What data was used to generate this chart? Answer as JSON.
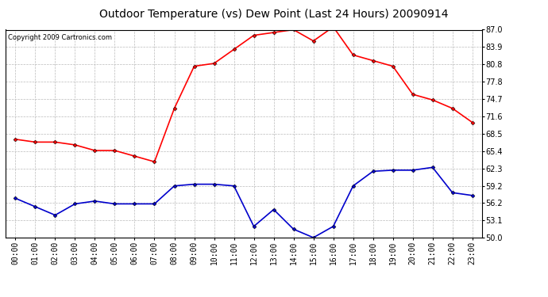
{
  "title": "Outdoor Temperature (vs) Dew Point (Last 24 Hours) 20090914",
  "copyright_text": "Copyright 2009 Cartronics.com",
  "hours": [
    "00:00",
    "01:00",
    "02:00",
    "03:00",
    "04:00",
    "05:00",
    "06:00",
    "07:00",
    "08:00",
    "09:00",
    "10:00",
    "11:00",
    "12:00",
    "13:00",
    "14:00",
    "15:00",
    "16:00",
    "17:00",
    "18:00",
    "19:00",
    "20:00",
    "21:00",
    "22:00",
    "23:00"
  ],
  "temp": [
    67.5,
    67.0,
    67.0,
    66.5,
    65.5,
    65.5,
    64.5,
    63.5,
    73.0,
    80.5,
    81.0,
    83.5,
    86.0,
    86.5,
    87.0,
    85.0,
    87.5,
    82.5,
    81.5,
    80.5,
    75.5,
    74.5,
    73.0,
    70.5
  ],
  "dew": [
    57.0,
    55.5,
    54.0,
    56.0,
    56.5,
    56.0,
    56.0,
    56.0,
    59.2,
    59.5,
    59.5,
    59.2,
    52.0,
    55.0,
    51.5,
    50.0,
    52.0,
    59.2,
    61.8,
    62.0,
    62.0,
    62.5,
    58.0,
    57.5
  ],
  "temp_color": "#ff0000",
  "dew_color": "#0000cc",
  "background_color": "#ffffff",
  "plot_bg_color": "#ffffff",
  "grid_color": "#bbbbbb",
  "ylim": [
    50.0,
    87.0
  ],
  "yticks": [
    50.0,
    53.1,
    56.2,
    59.2,
    62.3,
    65.4,
    68.5,
    71.6,
    74.7,
    77.8,
    80.8,
    83.9,
    87.0
  ],
  "title_fontsize": 10,
  "copyright_fontsize": 6,
  "axis_fontsize": 7,
  "marker": "D",
  "markersize": 2.5,
  "linewidth": 1.2
}
